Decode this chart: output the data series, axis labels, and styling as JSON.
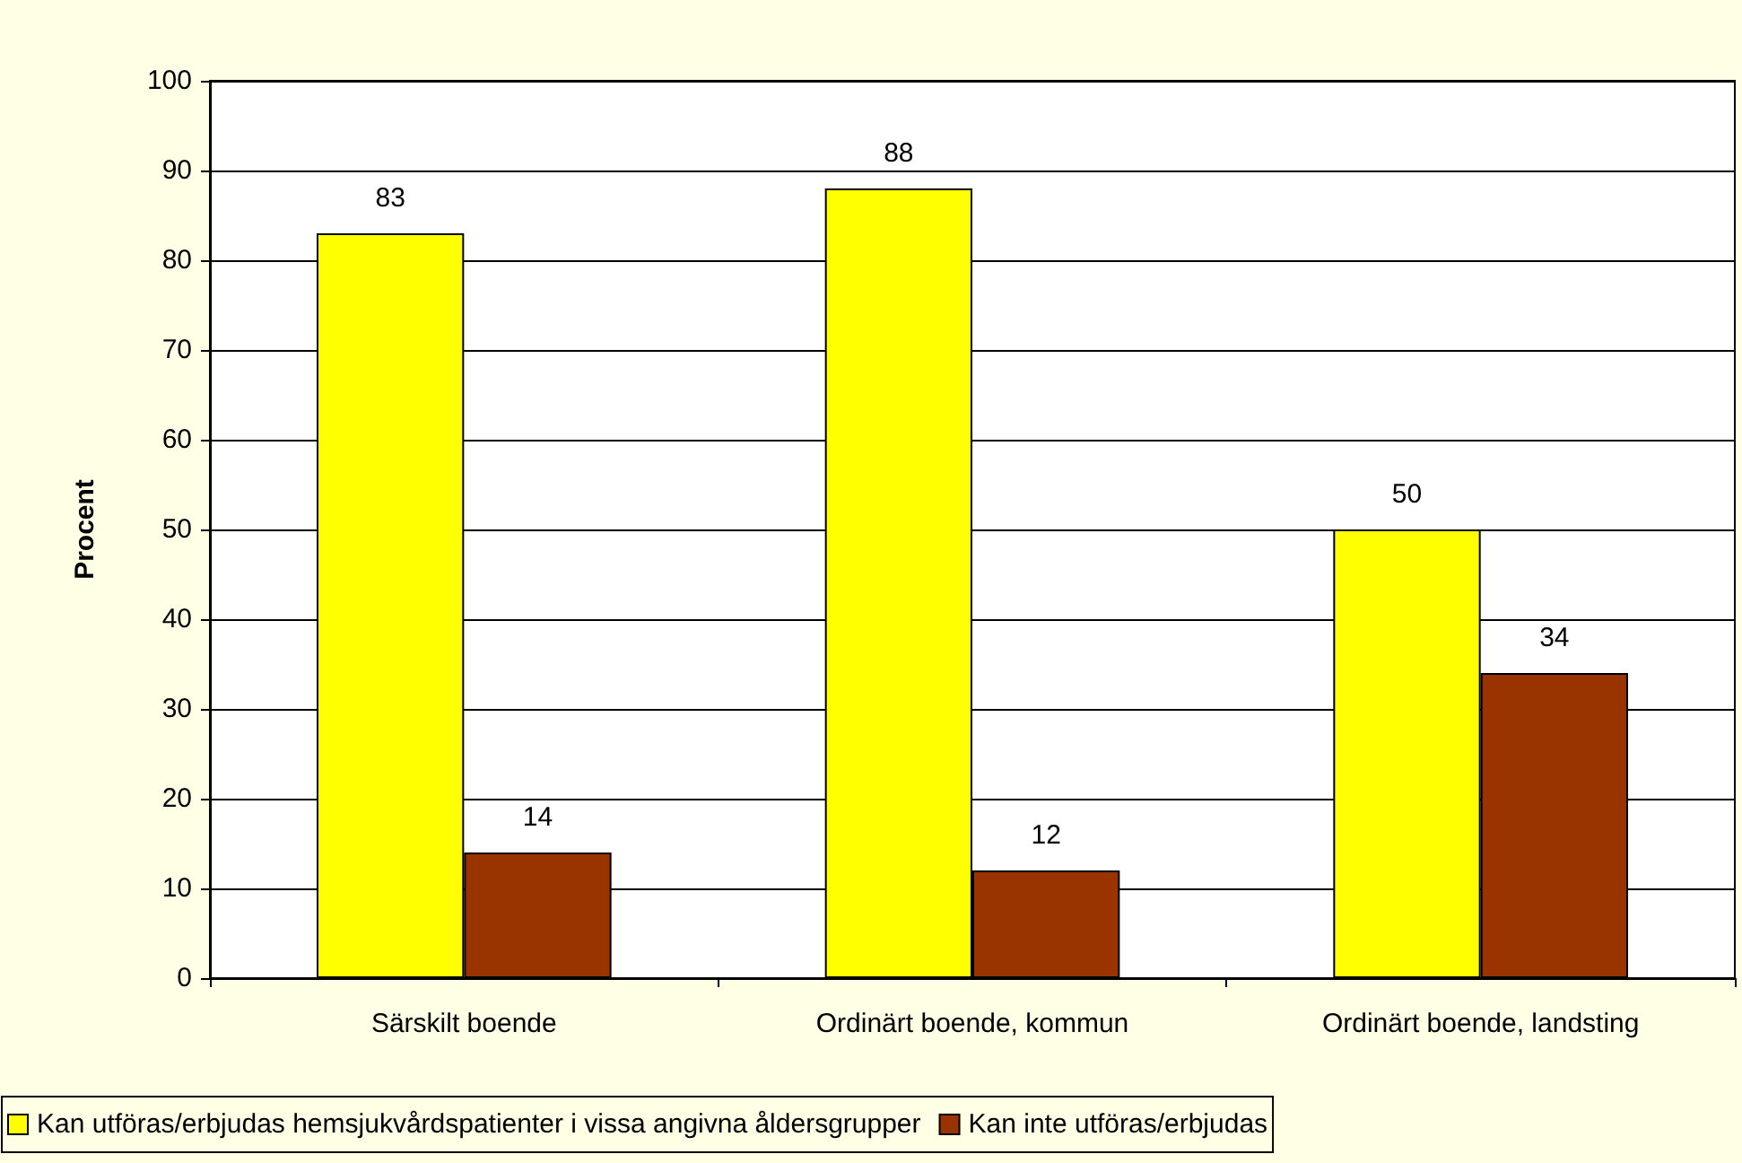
{
  "chart_data": {
    "type": "bar",
    "ylabel": "Procent",
    "categories": [
      "Särskilt boende",
      "Ordinärt boende, kommun",
      "Ordinärt boende, landsting"
    ],
    "series": [
      {
        "name": "Kan utföras/erbjudas hemsjukvårdspatienter i vissa angivna åldersgrupper",
        "color": "#ffff00",
        "values": [
          83,
          88,
          50
        ]
      },
      {
        "name": "Kan inte utföras/erbjudas",
        "color": "#993300",
        "values": [
          14,
          12,
          34
        ]
      }
    ],
    "ylim": [
      0,
      100
    ],
    "yticks": [
      0,
      10,
      20,
      30,
      40,
      50,
      60,
      70,
      80,
      90,
      100
    ],
    "grid": "y",
    "legend": "bottom",
    "data_labels": true
  }
}
